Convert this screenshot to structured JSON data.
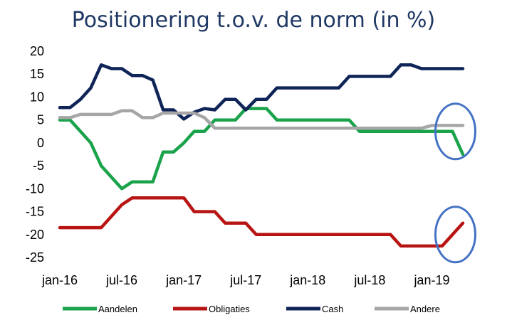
{
  "chart_data": {
    "type": "line",
    "title": "Positionering t.o.v. de norm (in %)",
    "xlabel": "",
    "ylabel": "",
    "ylim": [
      -25,
      20
    ],
    "yticks": [
      "20",
      "15",
      "10",
      "5",
      "0",
      "-5",
      "-10",
      "-15",
      "-20",
      "-25"
    ],
    "x_tick_labels": [
      "jan-16",
      "jul-16",
      "jan-17",
      "jul-17",
      "jan-18",
      "jul-18",
      "jan-19"
    ],
    "x": [
      "jan-16",
      "feb-16",
      "mrt-16",
      "apr-16",
      "mei-16",
      "jun-16",
      "jul-16",
      "aug-16",
      "sep-16",
      "okt-16",
      "nov-16",
      "dec-16",
      "jan-17",
      "feb-17",
      "mrt-17",
      "apr-17",
      "mei-17",
      "jun-17",
      "jul-17",
      "aug-17",
      "sep-17",
      "okt-17",
      "nov-17",
      "dec-17",
      "jan-18",
      "feb-18",
      "mrt-18",
      "apr-18",
      "mei-18",
      "jun-18",
      "jul-18",
      "aug-18",
      "sep-18",
      "okt-18",
      "nov-18",
      "dec-18",
      "jan-19",
      "feb-19",
      "mrt-19",
      "apr-19"
    ],
    "grid": false,
    "legend_position": "bottom",
    "series": [
      {
        "name": "Aandelen",
        "color": "#1aa34a",
        "values": [
          5,
          5,
          2.5,
          0,
          -5,
          -7.5,
          -10,
          -8.5,
          -8.5,
          -8.5,
          -2,
          -2,
          0,
          2.5,
          2.5,
          5,
          5,
          5,
          7.5,
          7.5,
          7.5,
          5,
          5,
          5,
          5,
          5,
          5,
          5,
          5,
          2.5,
          2.5,
          2.5,
          2.5,
          2.5,
          2.5,
          2.5,
          2.5,
          2.5,
          2.5,
          -2.5
        ]
      },
      {
        "name": "Obligaties",
        "color": "#b81414",
        "values": [
          -18.5,
          -18.5,
          -18.5,
          -18.5,
          -18.5,
          -16,
          -13.5,
          -12,
          -12,
          -12,
          -12,
          -12,
          -12,
          -15,
          -15,
          -15,
          -17.5,
          -17.5,
          -17.5,
          -20,
          -20,
          -20,
          -20,
          -20,
          -20,
          -20,
          -20,
          -20,
          -20,
          -20,
          -20,
          -20,
          -20,
          -22.5,
          -22.5,
          -22.5,
          -22.5,
          -22.5,
          -20,
          -17.5
        ]
      },
      {
        "name": "Cash",
        "color": "#0f2457",
        "values": [
          7.7,
          7.7,
          9.5,
          12,
          17,
          16.2,
          16.2,
          14.7,
          14.7,
          13.7,
          7.2,
          7.2,
          5.2,
          6.7,
          7.5,
          7.2,
          9.5,
          9.5,
          7.2,
          9.5,
          9.5,
          12,
          12,
          12,
          12,
          12,
          12,
          12,
          14.5,
          14.5,
          14.5,
          14.5,
          14.5,
          17,
          17,
          16.2,
          16.2,
          16.2,
          16.2,
          16.2
        ]
      },
      {
        "name": "Andere",
        "color": "#a6a6a6",
        "values": [
          5.5,
          5.5,
          6.2,
          6.2,
          6.2,
          6.2,
          7,
          7,
          5.5,
          5.5,
          6.5,
          6.5,
          6.5,
          6.5,
          5.5,
          3.2,
          3.2,
          3.2,
          3.2,
          3.2,
          3.2,
          3.2,
          3.2,
          3.2,
          3.2,
          3.2,
          3.2,
          3.2,
          3.2,
          3.2,
          3.2,
          3.2,
          3.2,
          3.2,
          3.2,
          3.2,
          3.8,
          3.8,
          3.8,
          3.8
        ]
      }
    ],
    "annotations": [
      {
        "shape": "ellipse",
        "color": "#4472c4",
        "around": "Aandelen",
        "at_x": "mrt-19"
      },
      {
        "shape": "ellipse",
        "color": "#4472c4",
        "around": "Obligaties",
        "at_x": "mrt-19"
      }
    ]
  }
}
